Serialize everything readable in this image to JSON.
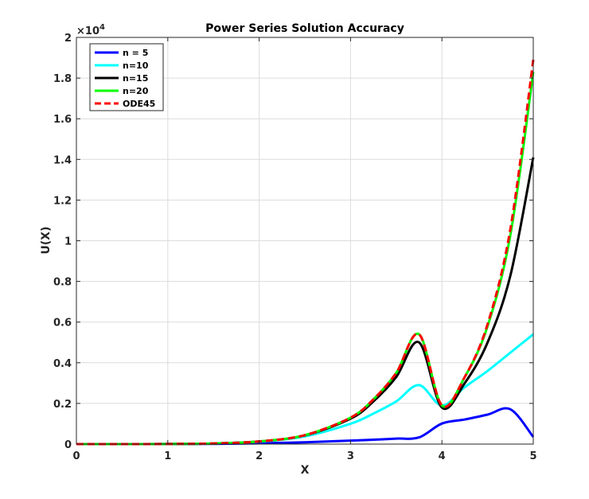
{
  "chart_data": {
    "type": "line",
    "title": "Power Series Solution Accuracy",
    "xlabel": "X",
    "ylabel": "U(X)",
    "xlim": [
      0,
      5
    ],
    "ylim": [
      0,
      20000
    ],
    "y_exponent_label": "×10",
    "y_exponent": "4",
    "grid": true,
    "legend_position": "top-left",
    "x_ticks": [
      0,
      1,
      2,
      3,
      4,
      5
    ],
    "x_tick_labels": [
      "0",
      "1",
      "2",
      "3",
      "4",
      "5"
    ],
    "y_ticks": [
      0,
      2000,
      4000,
      6000,
      8000,
      10000,
      12000,
      14000,
      16000,
      18000,
      20000
    ],
    "y_tick_labels": [
      "0",
      "0.2",
      "0.4",
      "0.6",
      "0.8",
      "1",
      "1.2",
      "1.4",
      "1.6",
      "1.8",
      "2"
    ],
    "x": [
      0,
      0.5,
      1,
      1.5,
      2,
      2.5,
      3,
      3.25,
      3.5,
      3.75,
      4,
      4.25,
      4.5,
      4.75,
      5
    ],
    "series": [
      {
        "name": "n = 5",
        "color": "#0000ff",
        "dash": "solid",
        "values": [
          0,
          0,
          3,
          12,
          40,
          90,
          170,
          215,
          270,
          330,
          1010,
          1210,
          1450,
          1710,
          350
        ]
      },
      {
        "name": "n=10",
        "color": "#00ffff",
        "dash": "solid",
        "values": [
          0,
          0,
          4,
          30,
          120,
          380,
          1000,
          1500,
          2100,
          2900,
          1900,
          2800,
          3600,
          4500,
          5400
        ]
      },
      {
        "name": "n=15",
        "color": "#000000",
        "dash": "solid",
        "values": [
          0,
          0,
          5,
          30,
          130,
          430,
          1250,
          2100,
          3300,
          5000,
          1800,
          3000,
          5000,
          8300,
          14100
        ]
      },
      {
        "name": "n=20",
        "color": "#00ff00",
        "dash": "solid",
        "values": [
          0,
          0,
          5,
          30,
          130,
          440,
          1300,
          2200,
          3500,
          5400,
          1900,
          3300,
          5800,
          10300,
          18300
        ]
      },
      {
        "name": "ODE45",
        "color": "#ff0000",
        "dash": "dashed",
        "values": [
          0,
          0,
          5,
          30,
          130,
          440,
          1300,
          2200,
          3500,
          5400,
          1900,
          3300,
          5900,
          10600,
          18900
        ]
      }
    ]
  }
}
